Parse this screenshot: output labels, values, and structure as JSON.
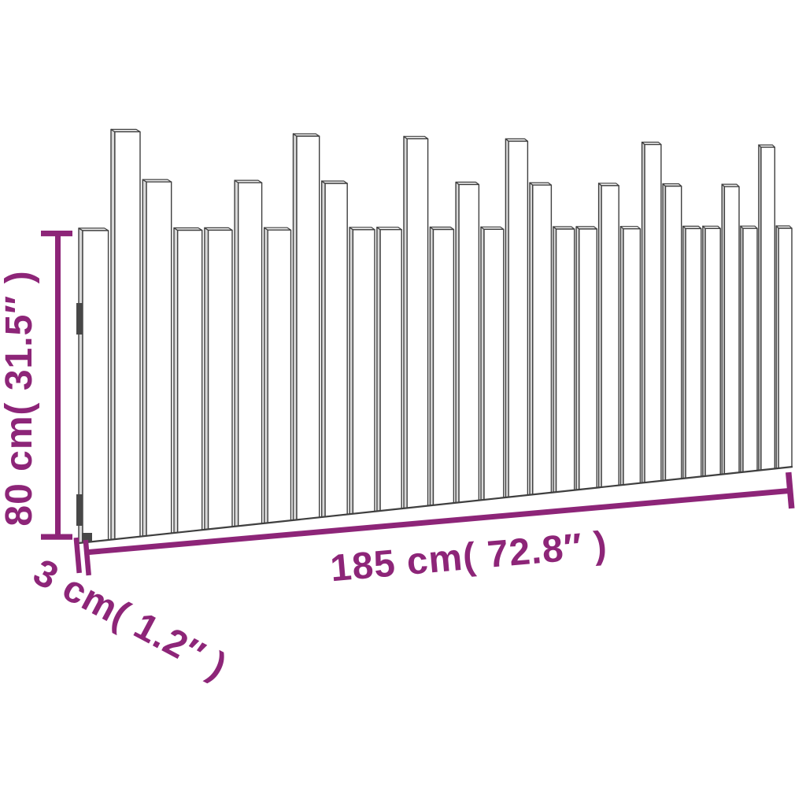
{
  "figure": {
    "type": "product-dimension-diagram",
    "subject": "wall headboard with vertical slats",
    "colors": {
      "dimension": "#8D2578",
      "outline": "#3F3F3F",
      "bracket": "#474747",
      "front_face": "#FFFFFF",
      "side_face": "#D9D9D9",
      "top_face": "#F2F2F2",
      "background": "#FFFFFF"
    },
    "dimensions": {
      "height": {
        "value_cm": 80,
        "value_in": 31.5,
        "label": "80 cm( 31.5″ )"
      },
      "width": {
        "value_cm": 185,
        "value_in": 72.8,
        "label": "185 cm( 72.8″ )"
      },
      "depth": {
        "value_cm": 3,
        "value_in": 1.2,
        "label": "3 cm( 1.2″ )"
      }
    },
    "slats": {
      "count": 29,
      "height_classes": {
        "tall": 1.0,
        "medium": 0.878,
        "short": 0.761
      },
      "pattern": [
        "short",
        "tall",
        "medium",
        "short",
        "short",
        "medium",
        "short",
        "tall",
        "medium",
        "short",
        "short",
        "tall",
        "short",
        "medium",
        "short",
        "tall",
        "medium",
        "short",
        "short",
        "medium",
        "short",
        "tall",
        "medium",
        "short",
        "short",
        "medium",
        "short",
        "tall",
        "short"
      ]
    }
  }
}
